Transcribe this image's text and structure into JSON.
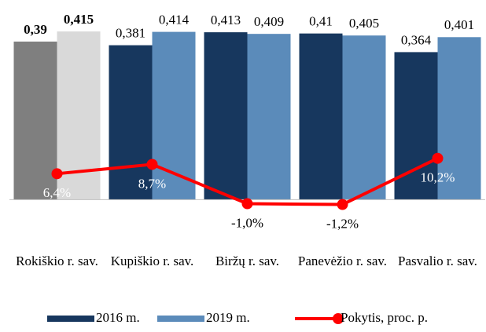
{
  "chart_data": {
    "type": "bar",
    "categories": [
      "Rokiškio r. sav.",
      "Kupiškio r. sav.",
      "Biržų r. sav.",
      "Panevėžio r. sav.",
      "Pasvalio r. sav."
    ],
    "series": [
      {
        "name": "2016 m.",
        "color": "#17375e",
        "colors": [
          "#7f7f7f",
          "#17375e",
          "#17375e",
          "#17375e",
          "#17375e"
        ],
        "values": [
          0.39,
          0.381,
          0.413,
          0.41,
          0.364
        ],
        "value_labels": [
          "0,39",
          "0,381",
          "0,413",
          "0,41",
          "0,364"
        ]
      },
      {
        "name": "2019 m.",
        "color": "#5b8bba",
        "colors": [
          "#d9d9d9",
          "#5b8bba",
          "#5b8bba",
          "#5b8bba",
          "#5b8bba"
        ],
        "values": [
          0.415,
          0.414,
          0.409,
          0.405,
          0.401
        ],
        "value_labels": [
          "0,415",
          "0,414",
          "0,409",
          "0,405",
          "0,401"
        ]
      },
      {
        "name": "Pokytis, proc. p.",
        "type": "line",
        "axis": "y2",
        "color": "#ff0000",
        "values": [
          6.4,
          8.7,
          -1.0,
          -1.2,
          10.2
        ],
        "value_labels": [
          "6,4%",
          "8,7%",
          "-1,0%",
          "-1,2%",
          "10,2%"
        ]
      }
    ],
    "ylim": [
      -0.1,
      0.45
    ],
    "y2lim": [
      -10,
      45
    ],
    "legend": "bottom"
  }
}
